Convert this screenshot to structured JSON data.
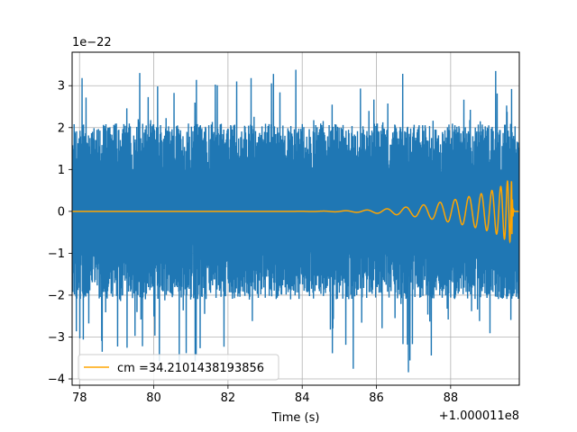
{
  "chart_data": {
    "type": "line",
    "xlabel": "Time (s)",
    "ylabel": "",
    "x_offset_label": "+1.000011e8",
    "y_scale_label": "1e−22",
    "xlim": [
      77.8,
      89.85
    ],
    "ylim": [
      -4.15,
      3.8
    ],
    "grid": true,
    "legend_position": "lower-left",
    "x_ticks": [
      {
        "value": 78,
        "label": "78"
      },
      {
        "value": 80,
        "label": "80"
      },
      {
        "value": 82,
        "label": "82"
      },
      {
        "value": 84,
        "label": "84"
      },
      {
        "value": 86,
        "label": "86"
      },
      {
        "value": 88,
        "label": "88"
      }
    ],
    "y_ticks": [
      {
        "value": 3,
        "label": "3"
      },
      {
        "value": 2,
        "label": "2"
      },
      {
        "value": 1,
        "label": "1"
      },
      {
        "value": 0,
        "label": "0"
      },
      {
        "value": -1,
        "label": "−1"
      },
      {
        "value": -2,
        "label": "−2"
      },
      {
        "value": -3,
        "label": "−3"
      },
      {
        "value": -4,
        "label": "−4"
      }
    ],
    "series": [
      {
        "kind": "strain-noise",
        "color": "#1f77b4",
        "x_start": 77.8,
        "x_end": 89.85,
        "envelope_upper": 2.1,
        "envelope_lower": -2.1,
        "peak_max": 3.45,
        "peak_min": -3.85
      },
      {
        "kind": "chirp-template",
        "name": "cm =34.2101438193856",
        "color": "#ffa500",
        "x_start": 77.8,
        "x_end": 89.85,
        "merger_time": 89.65,
        "peak_amplitude": 0.75,
        "trough_amplitude": -0.7
      }
    ]
  }
}
